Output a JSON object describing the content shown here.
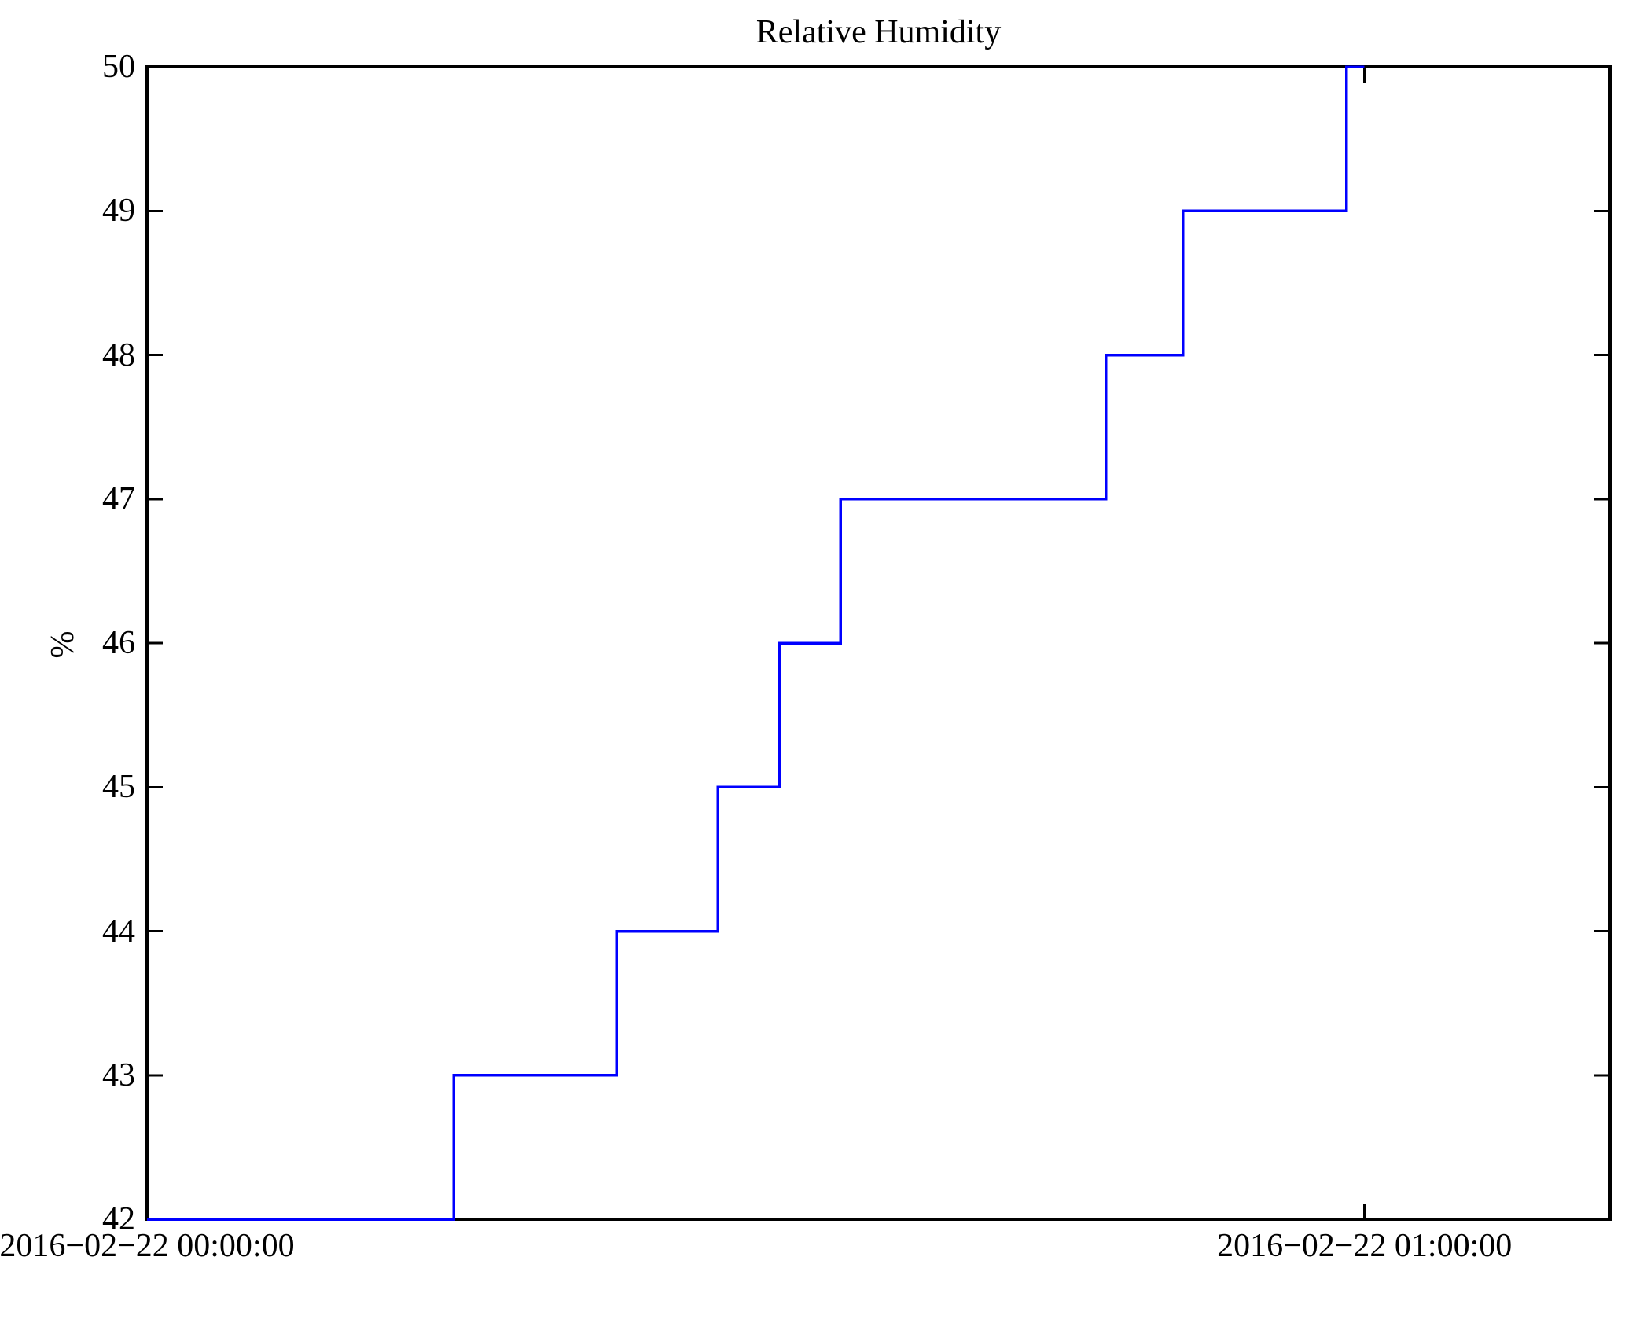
{
  "figure": {
    "background": "#ffffff",
    "axis_color": "#000000"
  },
  "chart_data": {
    "type": "line",
    "step_mode": "post",
    "title": "Relative Humidity",
    "ylabel": "%",
    "xlabel": "",
    "grid": false,
    "legend": null,
    "ylim": [
      42,
      50
    ],
    "yticks": [
      42,
      43,
      44,
      45,
      46,
      47,
      48,
      49,
      50
    ],
    "xlim_minutes": [
      0,
      72.1
    ],
    "xticks": [
      {
        "minutes": 0,
        "label": "2016−02−22 00:00:00"
      },
      {
        "minutes": 60,
        "label": "2016−02−22 01:00:00"
      }
    ],
    "series": [
      {
        "name": "relative-humidity",
        "color": "#0000ff",
        "points": [
          {
            "time": "2016-02-22 00:00:00",
            "minutes": 0,
            "value": 42
          },
          {
            "time": "2016-02-22 00:15:07",
            "minutes": 15.12,
            "value": 43
          },
          {
            "time": "2016-02-22 00:23:08",
            "minutes": 23.14,
            "value": 44
          },
          {
            "time": "2016-02-22 00:28:08",
            "minutes": 28.14,
            "value": 45
          },
          {
            "time": "2016-02-22 00:31:10",
            "minutes": 31.16,
            "value": 46
          },
          {
            "time": "2016-02-22 00:34:11",
            "minutes": 34.19,
            "value": 47
          },
          {
            "time": "2016-02-22 00:47:15",
            "minutes": 47.25,
            "value": 48
          },
          {
            "time": "2016-02-22 00:51:03",
            "minutes": 51.05,
            "value": 49
          },
          {
            "time": "2016-02-22 00:59:07",
            "minutes": 59.11,
            "value": 50
          },
          {
            "time": "2016-02-22 01:00:00",
            "minutes": 60.0,
            "value": 50
          }
        ]
      }
    ]
  }
}
